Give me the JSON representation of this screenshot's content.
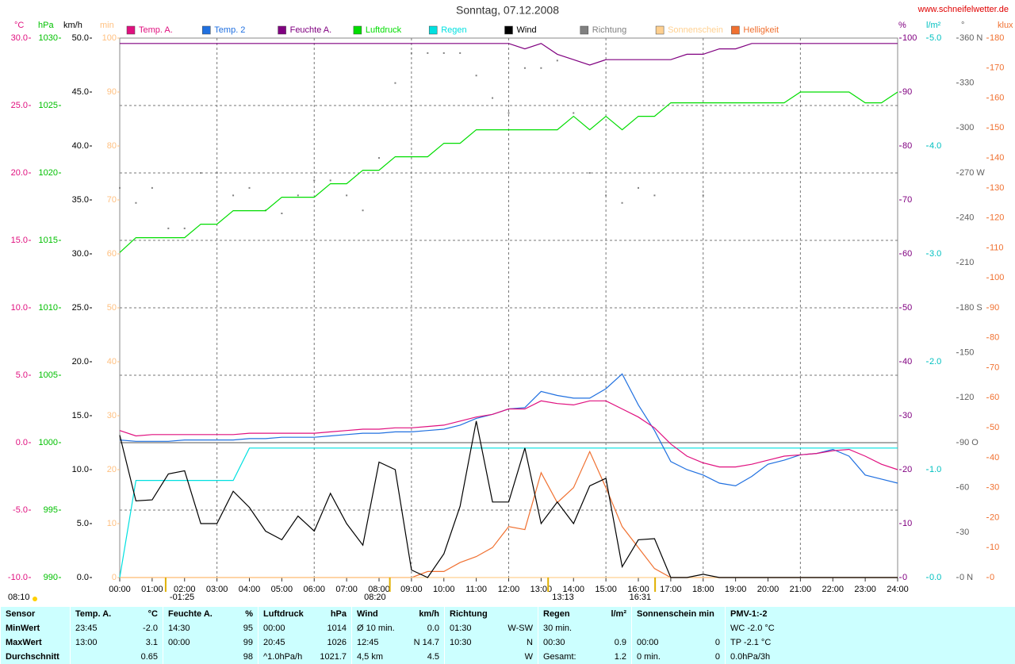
{
  "chart_data": {
    "type": "line",
    "title": "Sonntag, 07.12.2008",
    "source": "www.schneifelwetter.de",
    "grid": true,
    "xlim": [
      0,
      24
    ],
    "xticks": [
      {
        "value": 0,
        "label": "00:00"
      },
      {
        "value": 1,
        "label": "01:00"
      },
      {
        "value": 2,
        "label": "02:00"
      },
      {
        "value": 3,
        "label": "03:00"
      },
      {
        "value": 4,
        "label": "04:00"
      },
      {
        "value": 5,
        "label": "05:00"
      },
      {
        "value": 6,
        "label": "06:00"
      },
      {
        "value": 7,
        "label": "07:00"
      },
      {
        "value": 8,
        "label": "08:00"
      },
      {
        "value": 9,
        "label": "09:00"
      },
      {
        "value": 10,
        "label": "10:00"
      },
      {
        "value": 11,
        "label": "11:00"
      },
      {
        "value": 12,
        "label": "12:00"
      },
      {
        "value": 13,
        "label": "13:00"
      },
      {
        "value": 14,
        "label": "14:00"
      },
      {
        "value": 15,
        "label": "15:00"
      },
      {
        "value": 16,
        "label": "16:00"
      },
      {
        "value": 17,
        "label": "17:00"
      },
      {
        "value": 18,
        "label": "18:00"
      },
      {
        "value": 19,
        "label": "19:00"
      },
      {
        "value": 20,
        "label": "20:00"
      },
      {
        "value": 21,
        "label": "21:00"
      },
      {
        "value": 22,
        "label": "22:00"
      },
      {
        "value": 23,
        "label": "23:00"
      },
      {
        "value": 24,
        "label": "24:00"
      }
    ],
    "axes": [
      {
        "label": "°C",
        "side": "left",
        "color": "#e0107f",
        "lim": [
          -10,
          30
        ],
        "ticks": [
          {
            "value": 30,
            "label": "30.0"
          },
          {
            "value": 25,
            "label": "25.0"
          },
          {
            "value": 20,
            "label": "20.0"
          },
          {
            "value": 15,
            "label": "15.0"
          },
          {
            "value": 10,
            "label": "10.0"
          },
          {
            "value": 5,
            "label": "5.0"
          },
          {
            "value": 0,
            "label": "0.0"
          },
          {
            "value": -5,
            "label": "-5.0"
          },
          {
            "value": -10,
            "label": "-10.0"
          }
        ]
      },
      {
        "label": "hPa",
        "side": "left",
        "color": "#00c000",
        "lim": [
          990,
          1030
        ],
        "ticks": [
          1030,
          1025,
          1020,
          1015,
          1010,
          1005,
          1000,
          995,
          990
        ]
      },
      {
        "label": "km/h",
        "side": "left",
        "color": "#000000",
        "lim": [
          0,
          50
        ],
        "ticks": [
          {
            "value": 50,
            "label": "50.0"
          },
          {
            "value": 45,
            "label": "45.0"
          },
          {
            "value": 40,
            "label": "40.0"
          },
          {
            "value": 35,
            "label": "35.0"
          },
          {
            "value": 30,
            "label": "30.0"
          },
          {
            "value": 25,
            "label": "25.0"
          },
          {
            "value": 20,
            "label": "20.0"
          },
          {
            "value": 15,
            "label": "15.0"
          },
          {
            "value": 10,
            "label": "10.0"
          },
          {
            "value": 5,
            "label": "5.0"
          },
          {
            "value": 0,
            "label": "0.0"
          }
        ]
      },
      {
        "label": "min",
        "side": "left",
        "color": "#ffc080",
        "lim": [
          0,
          100
        ],
        "ticks": [
          100,
          90,
          80,
          70,
          60,
          50,
          40,
          30,
          20,
          10,
          0
        ]
      },
      {
        "label": "%",
        "side": "right",
        "color": "#800080",
        "lim": [
          0,
          100
        ],
        "ticks": [
          100,
          90,
          80,
          70,
          60,
          50,
          40,
          30,
          20,
          10,
          0
        ]
      },
      {
        "label": "l/m²",
        "side": "right",
        "color": "#00c0c0",
        "lim": [
          0,
          5
        ],
        "ticks": [
          {
            "value": 5,
            "label": "5.0"
          },
          {
            "value": 4,
            "label": "4.0"
          },
          {
            "value": 3,
            "label": "3.0"
          },
          {
            "value": 2,
            "label": "2.0"
          },
          {
            "value": 1,
            "label": "1.0"
          },
          {
            "value": 0,
            "label": "0.0"
          }
        ]
      },
      {
        "label": "°",
        "side": "right",
        "color": "#606060",
        "lim": [
          0,
          360
        ],
        "ticks": [
          {
            "value": 360,
            "label": "360 N"
          },
          330,
          300,
          {
            "value": 270,
            "label": "270 W"
          },
          240,
          210,
          {
            "value": 180,
            "label": "180 S"
          },
          150,
          120,
          {
            "value": 90,
            "label": "90 O"
          },
          60,
          30,
          {
            "value": 0,
            "label": "0 N"
          }
        ]
      },
      {
        "label": "klux",
        "side": "right",
        "color": "#f07030",
        "lim": [
          0,
          180
        ],
        "ticks": [
          180,
          170,
          160,
          150,
          140,
          130,
          120,
          110,
          100,
          90,
          80,
          70,
          60,
          50,
          40,
          30,
          20,
          10,
          0
        ]
      }
    ],
    "x": [
      0,
      0.5,
      1,
      1.5,
      2,
      2.5,
      3,
      3.5,
      4,
      4.5,
      5,
      5.5,
      6,
      6.5,
      7,
      7.5,
      8,
      8.5,
      9,
      9.5,
      10,
      10.5,
      11,
      11.5,
      12,
      12.5,
      13,
      13.5,
      14,
      14.5,
      15,
      15.5,
      16,
      16.5,
      17,
      17.5,
      18,
      18.5,
      19,
      19.5,
      20,
      20.5,
      21,
      21.5,
      22,
      22.5,
      23,
      23.5,
      24
    ],
    "series": [
      {
        "name": "Temp. A.",
        "color": "#e0107f",
        "axis": 0,
        "style": "line",
        "values": [
          0.9,
          0.5,
          0.6,
          0.6,
          0.6,
          0.6,
          0.6,
          0.6,
          0.7,
          0.7,
          0.7,
          0.7,
          0.7,
          0.8,
          0.9,
          1.0,
          1.0,
          1.1,
          1.1,
          1.2,
          1.3,
          1.6,
          1.9,
          2.1,
          2.5,
          2.5,
          3.1,
          2.9,
          2.8,
          3.1,
          3.1,
          2.5,
          1.9,
          1.1,
          -0.1,
          -1.0,
          -1.5,
          -1.8,
          -1.8,
          -1.6,
          -1.3,
          -1.0,
          -0.9,
          -0.8,
          -0.6,
          -0.5,
          -1.0,
          -1.6,
          -2.0
        ]
      },
      {
        "name": "Temp. 2",
        "color": "#2070e0",
        "axis": 0,
        "style": "line",
        "values": [
          0.2,
          0.1,
          0.1,
          0.1,
          0.2,
          0.2,
          0.2,
          0.2,
          0.3,
          0.3,
          0.4,
          0.4,
          0.4,
          0.5,
          0.6,
          0.7,
          0.7,
          0.8,
          0.8,
          0.9,
          1.0,
          1.3,
          1.8,
          2.1,
          2.5,
          2.6,
          3.8,
          3.5,
          3.3,
          3.3,
          4.0,
          5.1,
          2.8,
          0.9,
          -1.4,
          -2.0,
          -2.4,
          -3.0,
          -3.2,
          -2.5,
          -1.6,
          -1.3,
          -0.9,
          -0.8,
          -0.5,
          -1.0,
          -2.4,
          -2.7,
          -3.0
        ]
      },
      {
        "name": "Feuchte A.",
        "color": "#800080",
        "axis": 4,
        "style": "line",
        "values": [
          99,
          99,
          99,
          99,
          99,
          99,
          99,
          99,
          99,
          99,
          99,
          99,
          99,
          99,
          99,
          99,
          99,
          99,
          99,
          99,
          99,
          99,
          99,
          99,
          99,
          98,
          99,
          97,
          96,
          95,
          96,
          96,
          96,
          96,
          96,
          97,
          97,
          98,
          98,
          99,
          99,
          99,
          99,
          99,
          99,
          99,
          99,
          99,
          99
        ]
      },
      {
        "name": "Luftdruck",
        "color": "#00dd00",
        "axis": 1,
        "style": "line",
        "values": [
          1014.1,
          1015.2,
          1015.2,
          1015.2,
          1015.2,
          1016.2,
          1016.2,
          1017.2,
          1017.2,
          1017.2,
          1018.2,
          1018.2,
          1018.2,
          1019.2,
          1019.2,
          1020.2,
          1020.2,
          1021.2,
          1021.2,
          1021.2,
          1022.2,
          1022.2,
          1023.2,
          1023.2,
          1023.2,
          1023.2,
          1023.2,
          1023.2,
          1024.2,
          1023.2,
          1024.2,
          1023.2,
          1024.2,
          1024.2,
          1025.2,
          1025.2,
          1025.2,
          1025.2,
          1025.2,
          1025.2,
          1025.2,
          1025.2,
          1026,
          1026,
          1026,
          1026,
          1025.2,
          1025.2,
          1026
        ]
      },
      {
        "name": "Regen",
        "color": "#00e0e0",
        "axis": 5,
        "style": "line",
        "values": [
          0,
          0.9,
          0.9,
          0.9,
          0.9,
          0.9,
          0.9,
          0.9,
          1.2,
          1.2,
          1.2,
          1.2,
          1.2,
          1.2,
          1.2,
          1.2,
          1.2,
          1.2,
          1.2,
          1.2,
          1.2,
          1.2,
          1.2,
          1.2,
          1.2,
          1.2,
          1.2,
          1.2,
          1.2,
          1.2,
          1.2,
          1.2,
          1.2,
          1.2,
          1.2,
          1.2,
          1.2,
          1.2,
          1.2,
          1.2,
          1.2,
          1.2,
          1.2,
          1.2,
          1.2,
          1.2,
          1.2,
          1.2,
          1.2
        ]
      },
      {
        "name": "Wind",
        "color": "#000000",
        "axis": 2,
        "style": "line",
        "values": [
          13.2,
          7.1,
          7.2,
          9.6,
          9.9,
          5.0,
          5.0,
          8.0,
          6.5,
          4.3,
          3.5,
          5.7,
          4.3,
          7.8,
          5.0,
          3.0,
          10.7,
          10.0,
          0.7,
          0.0,
          2.2,
          6.6,
          14.5,
          7.0,
          7.0,
          12.0,
          5.0,
          7.0,
          5.0,
          8.5,
          9.2,
          1.0,
          3.5,
          3.6,
          0.0,
          0.0,
          0.3,
          0.0,
          0.0,
          0.0,
          0,
          0,
          0,
          0,
          0,
          0,
          0,
          0,
          0
        ]
      },
      {
        "name": "Richtung",
        "color": "#808080",
        "axis": 6,
        "style": "dots",
        "values": [
          260,
          250,
          260,
          233,
          233,
          270,
          270,
          255,
          260,
          245,
          243,
          255,
          265,
          265,
          255,
          245,
          280,
          330,
          350,
          350,
          350,
          350,
          335,
          320,
          310,
          340,
          340,
          345,
          310,
          270,
          255,
          250,
          260,
          255,
          null,
          null,
          255,
          null,
          null,
          null,
          null,
          null,
          null,
          null,
          null,
          null,
          null,
          null,
          null
        ]
      },
      {
        "name": "Sonnenschein",
        "color": "#ffd090",
        "axis": 3,
        "style": "line",
        "values": [
          0,
          0,
          0,
          0,
          0,
          0,
          0,
          0,
          0,
          0,
          0,
          0,
          0,
          0,
          0,
          0,
          0,
          0,
          0,
          0,
          0,
          0,
          0,
          0,
          0,
          0,
          0,
          0,
          0,
          0,
          0,
          0,
          0,
          0,
          0,
          0,
          0,
          0,
          0,
          0,
          0,
          0,
          0,
          0,
          0,
          0,
          0,
          0,
          0
        ]
      },
      {
        "name": "Helligkeit",
        "color": "#f07030",
        "axis": 7,
        "style": "line",
        "values": [
          0,
          0,
          0,
          0,
          0,
          0,
          0,
          0,
          0,
          0,
          0,
          0,
          0,
          0,
          0,
          0,
          0,
          0,
          0,
          2,
          2,
          5,
          7,
          10,
          17,
          16,
          35,
          25,
          30,
          42,
          30,
          17,
          10,
          3,
          0,
          0,
          0,
          0,
          0,
          0,
          0,
          0,
          0,
          0,
          0,
          0,
          0,
          0,
          0
        ]
      }
    ],
    "annotations": [
      {
        "text": "08:10"
      },
      {
        "text": "-01:25",
        "x": 1.4167
      },
      {
        "text": "08:20",
        "x": 8.3333
      },
      {
        "text": "13:13",
        "x": 13.2167
      },
      {
        "text": "16:31",
        "x": 16.5167
      }
    ]
  },
  "table": {
    "header": [
      [
        "Sensor",
        null
      ],
      [
        "Temp. A.",
        "°C"
      ],
      [
        "Feuchte A.",
        "%"
      ],
      [
        "Luftdruck",
        "hPa"
      ],
      [
        "Wind",
        "km/h"
      ],
      [
        "Richtung",
        null
      ],
      [
        "Regen",
        "l/m²"
      ],
      [
        "Sonnenschein min",
        null
      ],
      [
        "PMV-1:-2",
        null
      ]
    ],
    "rows": [
      [
        [
          "MinWert",
          null
        ],
        [
          "23:45",
          "-2.0"
        ],
        [
          "14:30",
          "95"
        ],
        [
          "00:00",
          "1014"
        ],
        [
          "Ø 10 min.",
          "0.0"
        ],
        [
          "01:30",
          "W-SW"
        ],
        [
          "30 min.",
          null
        ],
        [
          null,
          null
        ],
        [
          "WC -2.0 °C",
          null
        ]
      ],
      [
        [
          "MaxWert",
          null
        ],
        [
          "13:00",
          "3.1"
        ],
        [
          "00:00",
          "99"
        ],
        [
          "20:45",
          "1026"
        ],
        [
          "12:45",
          "N 14.7"
        ],
        [
          "10:30",
          "N"
        ],
        [
          "00:30",
          "0.9"
        ],
        [
          "00:00",
          "0"
        ],
        [
          "TP -2.1 °C",
          null
        ]
      ],
      [
        [
          "Durchschnitt",
          null
        ],
        [
          null,
          "0.65"
        ],
        [
          null,
          "98"
        ],
        [
          "^1.0hPa/h",
          "1021.7"
        ],
        [
          "4,5 km",
          "4.5"
        ],
        [
          null,
          "W"
        ],
        [
          "Gesamt:",
          "1.2"
        ],
        [
          "0 min.",
          "0"
        ],
        [
          "0.0hPa/3h",
          null
        ]
      ]
    ]
  }
}
